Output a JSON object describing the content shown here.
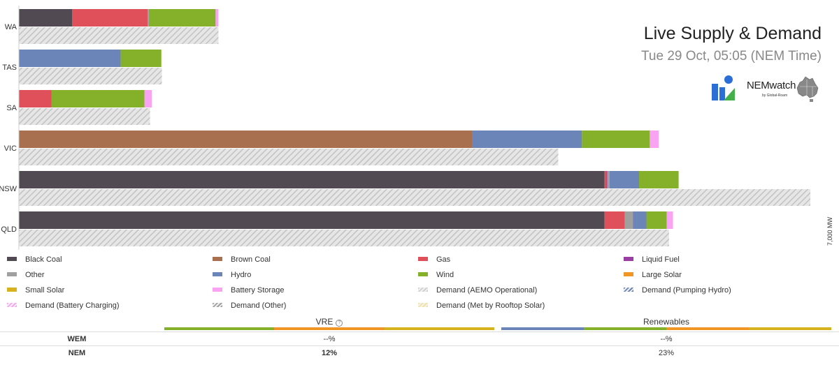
{
  "header": {
    "title": "Live Supply & Demand",
    "subtitle": "Tue 29 Oct, 05:05 (NEM Time)",
    "brand": "NEMwatch",
    "brand_sub": "by Global-Roam"
  },
  "chart_data": {
    "type": "bar",
    "orientation": "horizontal",
    "stacked": true,
    "axis_label": "7,000 MW",
    "xlim": [
      0,
      7000
    ],
    "categories": [
      "WA",
      "TAS",
      "SA",
      "VIC",
      "NSW",
      "QLD"
    ],
    "series": [
      {
        "name": "Black Coal",
        "color": "#514a52",
        "values": [
          470,
          0,
          0,
          0,
          5180,
          5180
        ]
      },
      {
        "name": "Brown Coal",
        "color": "#a8704f",
        "values": [
          0,
          0,
          0,
          4010,
          0,
          0
        ]
      },
      {
        "name": "Gas",
        "color": "#e0505a",
        "values": [
          670,
          0,
          290,
          0,
          15,
          180
        ]
      },
      {
        "name": "Liquid Fuel",
        "color": "#9b3ea3",
        "values": [
          0,
          0,
          0,
          0,
          10,
          0
        ]
      },
      {
        "name": "Other",
        "color": "#a0a0a0",
        "values": [
          10,
          0,
          0,
          0,
          20,
          70
        ]
      },
      {
        "name": "Hydro",
        "color": "#6b85b8",
        "values": [
          0,
          900,
          0,
          970,
          260,
          120
        ]
      },
      {
        "name": "Wind",
        "color": "#84b02a",
        "values": [
          590,
          360,
          820,
          600,
          350,
          180
        ]
      },
      {
        "name": "Large Solar",
        "color": "#ef9626",
        "values": [
          0,
          0,
          0,
          0,
          0,
          0
        ]
      },
      {
        "name": "Small Solar",
        "color": "#d6b21f",
        "values": [
          0,
          0,
          0,
          0,
          0,
          0
        ]
      },
      {
        "name": "Battery Storage",
        "color": "#f9a3f2",
        "values": [
          25,
          0,
          65,
          80,
          0,
          55
        ]
      }
    ],
    "demand": [
      {
        "name": "Demand (AEMO Operational)",
        "values": [
          1765,
          1265,
          1160,
          4770,
          7000,
          5750
        ]
      }
    ],
    "legend": [
      {
        "name": "Black Coal",
        "color": "#514a52",
        "pattern": false
      },
      {
        "name": "Brown Coal",
        "color": "#a8704f",
        "pattern": false
      },
      {
        "name": "Gas",
        "color": "#e0505a",
        "pattern": false
      },
      {
        "name": "Liquid Fuel",
        "color": "#9b3ea3",
        "pattern": false
      },
      {
        "name": "Other",
        "color": "#a0a0a0",
        "pattern": false
      },
      {
        "name": "Hydro",
        "color": "#6b85b8",
        "pattern": false
      },
      {
        "name": "Wind",
        "color": "#84b02a",
        "pattern": false
      },
      {
        "name": "Large Solar",
        "color": "#ef9626",
        "pattern": false
      },
      {
        "name": "Small Solar",
        "color": "#d6b21f",
        "pattern": false
      },
      {
        "name": "Battery Storage",
        "color": "#f9a3f2",
        "pattern": false
      },
      {
        "name": "Demand (AEMO Operational)",
        "color": "#d0d0d0",
        "pattern": true
      },
      {
        "name": "Demand (Pumping Hydro)",
        "color": "#6b85b8",
        "pattern": true
      },
      {
        "name": "Demand (Battery Charging)",
        "color": "#f9a3f2",
        "pattern": true
      },
      {
        "name": "Demand (Other)",
        "color": "#a0a0a0",
        "pattern": true
      },
      {
        "name": "Demand (Met by Rooftop Solar)",
        "color": "#f3e3a0",
        "pattern": true
      }
    ]
  },
  "table": {
    "col_vre": "VRE",
    "col_renewables": "Renewables",
    "help_icon": "?",
    "vre_colors": [
      "#84b02a",
      "#ef9626",
      "#d6b21f"
    ],
    "renew_colors": [
      "#6b85b8",
      "#84b02a",
      "#ef9626",
      "#d6b21f"
    ],
    "rows": [
      {
        "region": "WEM",
        "vre": "--%",
        "renewables": "--%"
      },
      {
        "region": "NEM",
        "vre": "12%",
        "renewables": "23%"
      }
    ]
  }
}
